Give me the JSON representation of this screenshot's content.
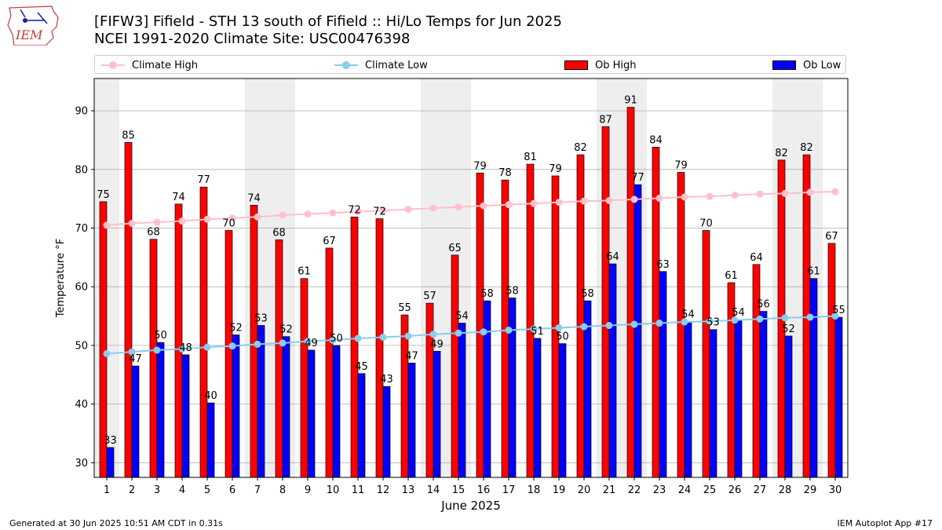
{
  "header": {
    "title": "[FIFW3] Fifield - STH 13 south of Fifield :: Hi/Lo Temps for Jun 2025",
    "subtitle": "NCEI 1991-2020 Climate Site: USC00476398",
    "logo_text": "IEM"
  },
  "footer": {
    "generated": "Generated at 30 Jun 2025 10:51 AM CDT in 0.31s",
    "app": "IEM Autoplot App #17"
  },
  "legend": {
    "climate_high": "Climate High",
    "climate_low": "Climate Low",
    "ob_high": "Ob High",
    "ob_low": "Ob Low"
  },
  "colors": {
    "climate_high": "#ffc0cb",
    "climate_low": "#87ceeb",
    "ob_high": "#ff0000",
    "ob_low": "#0000ff",
    "weekend_shade": "#eeeeee",
    "grid": "#b0b0b0"
  },
  "chart_data": {
    "type": "bar",
    "title": "[FIFW3] Fifield - STH 13 south of Fifield :: Hi/Lo Temps for Jun 2025",
    "xlabel": "June 2025",
    "ylabel": "Temperature °F",
    "ylim": [
      27.5,
      95.5
    ],
    "yticks": [
      30,
      40,
      50,
      60,
      70,
      80,
      90
    ],
    "grid": "horizontal",
    "legend_placement": "top",
    "categories": [
      1,
      2,
      3,
      4,
      5,
      6,
      7,
      8,
      9,
      10,
      11,
      12,
      13,
      14,
      15,
      16,
      17,
      18,
      19,
      20,
      21,
      22,
      23,
      24,
      25,
      26,
      27,
      28,
      29,
      30
    ],
    "shaded_days": [
      1,
      7,
      8,
      14,
      15,
      21,
      22,
      28,
      29
    ],
    "series": [
      {
        "name": "Ob High",
        "kind": "bar",
        "values": [
          74.5,
          84.6,
          68.1,
          74.1,
          77.0,
          69.6,
          73.9,
          68.0,
          61.4,
          66.6,
          71.9,
          71.6,
          55.2,
          57.2,
          65.4,
          79.4,
          78.2,
          80.9,
          78.9,
          82.5,
          87.3,
          90.6,
          83.8,
          79.5,
          69.6,
          60.7,
          63.8,
          81.6,
          82.5,
          67.4
        ],
        "labels": [
          75,
          85,
          68,
          74,
          77,
          70,
          74,
          68,
          61,
          67,
          72,
          72,
          55,
          57,
          65,
          79,
          78,
          81,
          79,
          82,
          87,
          91,
          84,
          79,
          70,
          61,
          64,
          82,
          82,
          67
        ]
      },
      {
        "name": "Ob Low",
        "kind": "bar",
        "values": [
          32.6,
          46.5,
          50.5,
          48.4,
          40.2,
          51.8,
          53.4,
          51.5,
          49.2,
          50.0,
          45.2,
          43.0,
          47.0,
          49.0,
          53.8,
          57.6,
          58.1,
          51.2,
          50.3,
          57.6,
          63.9,
          77.4,
          62.6,
          54.1,
          52.7,
          54.4,
          55.8,
          51.6,
          61.4,
          54.8
        ],
        "labels": [
          33,
          47,
          50,
          48,
          40,
          52,
          53,
          52,
          49,
          50,
          45,
          43,
          47,
          49,
          54,
          58,
          58,
          51,
          50,
          58,
          64,
          77,
          63,
          54,
          53,
          54,
          56,
          52,
          61,
          55
        ]
      },
      {
        "name": "Climate High",
        "kind": "line",
        "values": [
          70.5,
          70.8,
          71.0,
          71.2,
          71.5,
          71.7,
          71.9,
          72.2,
          72.4,
          72.6,
          72.8,
          73.0,
          73.2,
          73.4,
          73.6,
          73.8,
          74.0,
          74.2,
          74.4,
          74.6,
          74.7,
          74.9,
          75.1,
          75.3,
          75.4,
          75.6,
          75.8,
          75.9,
          76.1,
          76.2
        ]
      },
      {
        "name": "Climate Low",
        "kind": "line",
        "values": [
          48.6,
          48.9,
          49.2,
          49.4,
          49.7,
          49.9,
          50.2,
          50.4,
          50.7,
          50.9,
          51.2,
          51.4,
          51.6,
          51.9,
          52.1,
          52.3,
          52.6,
          52.8,
          53.0,
          53.2,
          53.4,
          53.6,
          53.8,
          54.0,
          54.1,
          54.3,
          54.5,
          54.7,
          54.8,
          55.0
        ]
      }
    ]
  }
}
